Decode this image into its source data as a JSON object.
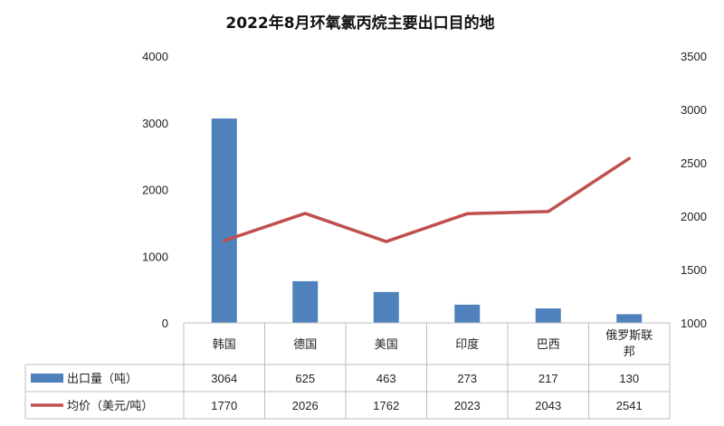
{
  "chart_data": {
    "type": "bar",
    "title": "2022年8月环氧氯丙烷主要出口目的地",
    "categories": [
      "韩国",
      "德国",
      "美国",
      "印度",
      "巴西",
      [
        "俄罗斯联",
        "邦"
      ]
    ],
    "series": [
      {
        "name": "出口量（吨）",
        "type": "bar",
        "axis": "left",
        "values": [
          3064,
          625,
          463,
          273,
          217,
          130
        ],
        "color": "#4f81bd"
      },
      {
        "name": "均价（美元/吨）",
        "type": "line",
        "axis": "right",
        "values": [
          1770,
          2026,
          1762,
          2023,
          2043,
          2541
        ],
        "color": "#c0504d"
      }
    ],
    "y_left": {
      "min": 0,
      "max": 4000,
      "ticks": [
        0,
        1000,
        2000,
        3000,
        4000
      ]
    },
    "y_right": {
      "min": 1000,
      "max": 3500,
      "ticks": [
        1000,
        1500,
        2000,
        2500,
        3000,
        3500
      ]
    },
    "grid": false,
    "legend": "data-table"
  }
}
